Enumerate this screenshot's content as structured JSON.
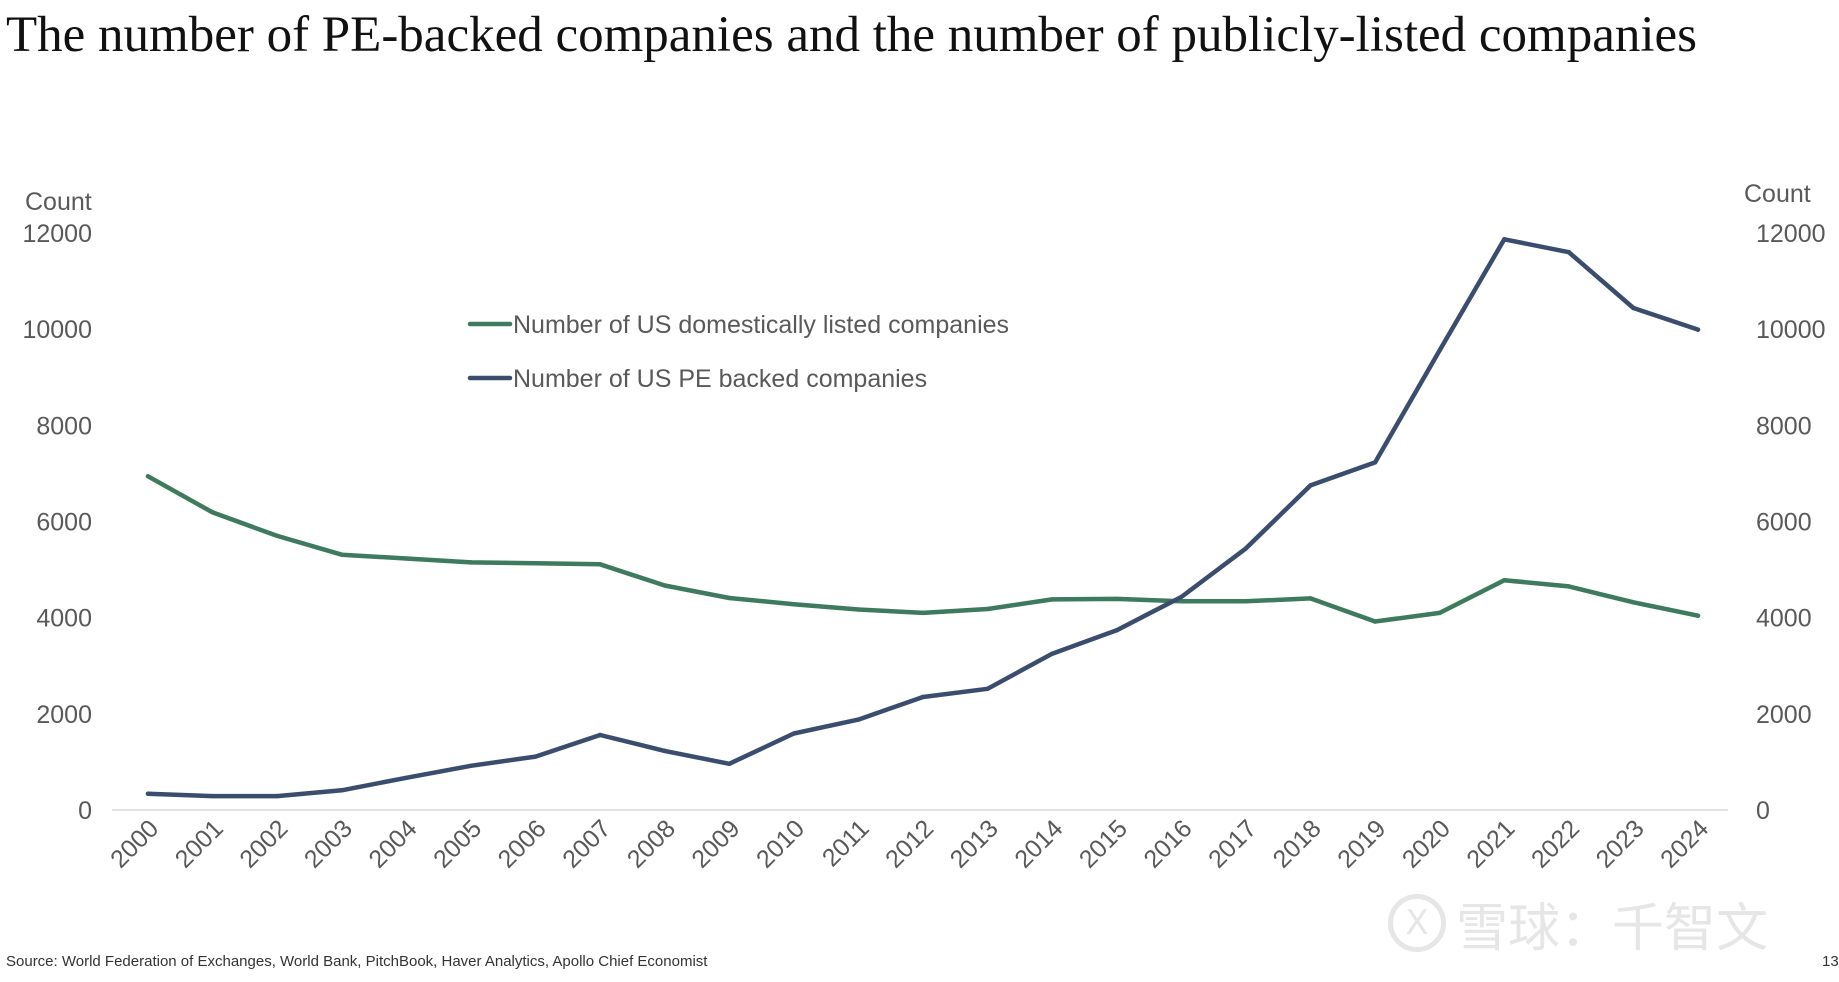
{
  "title": "The number of PE-backed companies and the number of publicly-listed companies",
  "source": "Source: World Federation of Exchanges, World Bank, PitchBook, Haver Analytics, Apollo Chief Economist",
  "page_number": "13",
  "watermark": {
    "logo_mark": "X",
    "text": "雪球：千智文"
  },
  "colors": {
    "listed": "#3d7a5e",
    "pe": "#3b4d6e",
    "tick": "#595959",
    "baseline": "#d9d9d9"
  },
  "chart_data": {
    "type": "line",
    "title": "The number of PE-backed companies and the number of publicly-listed companies",
    "x": [
      "2000",
      "2001",
      "2002",
      "2003",
      "2004",
      "2005",
      "2006",
      "2007",
      "2008",
      "2009",
      "2010",
      "2011",
      "2012",
      "2013",
      "2014",
      "2015",
      "2016",
      "2017",
      "2018",
      "2019",
      "2020",
      "2021",
      "2022",
      "2023",
      "2024"
    ],
    "y_left": {
      "label": "Count",
      "ylim": [
        0,
        12000
      ],
      "ticks": [
        0,
        2000,
        4000,
        6000,
        8000,
        10000,
        12000
      ]
    },
    "y_right": {
      "label": "Count",
      "ylim": [
        0,
        12000
      ],
      "ticks": [
        0,
        2000,
        4000,
        6000,
        8000,
        10000,
        12000
      ]
    },
    "series": [
      {
        "name": "Number of US domestically listed companies",
        "color": "#3d7a5e",
        "values": [
          6940,
          6190,
          5700,
          5310,
          5230,
          5150,
          5130,
          5110,
          4670,
          4410,
          4280,
          4170,
          4100,
          4180,
          4380,
          4390,
          4340,
          4340,
          4400,
          3920,
          4100,
          4780,
          4650,
          4320,
          4040
        ]
      },
      {
        "name": "Number of US PE backed companies",
        "color": "#3b4d6e",
        "values": [
          340,
          290,
          290,
          410,
          670,
          920,
          1110,
          1560,
          1230,
          960,
          1590,
          1880,
          2350,
          2520,
          3250,
          3740,
          4430,
          5440,
          6750,
          7230,
          9560,
          11870,
          11600,
          10440,
          9990
        ]
      }
    ],
    "legend": {
      "position": "upper-center"
    },
    "grid": false
  }
}
